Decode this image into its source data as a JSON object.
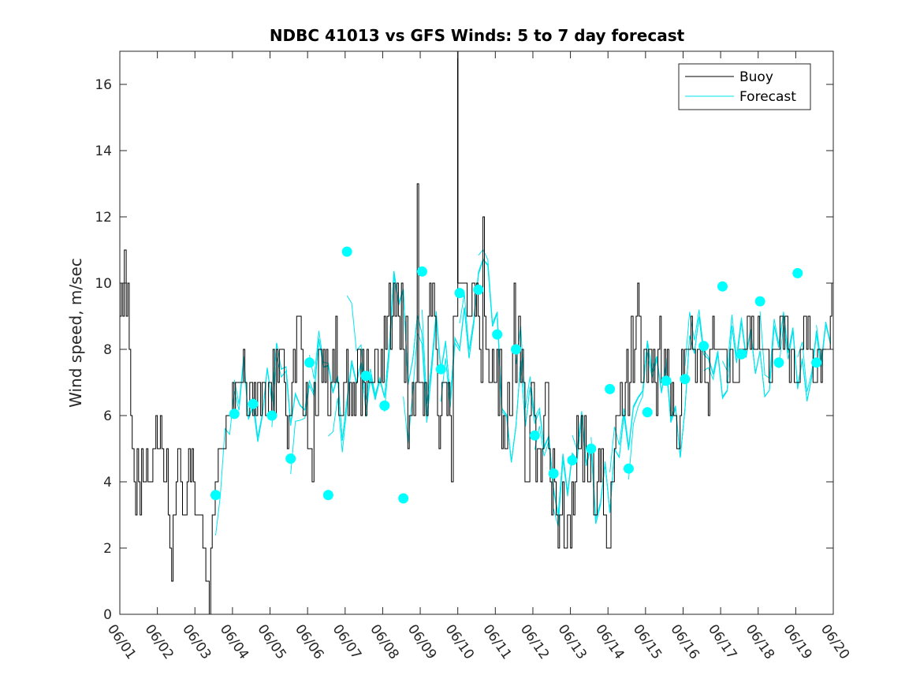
{
  "chart_data": {
    "type": "line",
    "title": "NDBC 41013 vs GFS Winds: 5 to 7 day forecast",
    "xlabel": "",
    "ylabel": "Wind speed, m/sec",
    "x_ticks": [
      "06/01",
      "06/02",
      "06/03",
      "06/04",
      "06/05",
      "06/06",
      "06/07",
      "06/08",
      "06/09",
      "06/10",
      "06/11",
      "06/12",
      "06/13",
      "06/14",
      "06/15",
      "06/16",
      "06/17",
      "06/18",
      "06/19",
      "06/20"
    ],
    "xlim": [
      0,
      19
    ],
    "ylim": [
      0,
      17
    ],
    "y_ticks": [
      0,
      2,
      4,
      6,
      8,
      10,
      12,
      14,
      16
    ],
    "grid": false,
    "legend": {
      "position": "top-right",
      "entries": [
        "Buoy",
        "Forecast"
      ]
    },
    "colors": {
      "buoy": "#000000",
      "forecast": "#00e5ee",
      "markers": "#00ffff"
    },
    "series": [
      {
        "name": "Buoy",
        "x_days_since_0601": [
          0,
          0.04,
          0.08,
          0.12,
          0.17,
          0.21,
          0.25,
          0.29,
          0.33,
          0.38,
          0.42,
          0.46,
          0.5,
          0.54,
          0.58,
          0.62,
          0.67,
          0.71,
          0.75,
          0.79,
          0.83,
          0.88,
          0.92,
          0.96,
          1,
          1.04,
          1.08,
          1.12,
          1.17,
          1.21,
          1.25,
          1.29,
          1.33,
          1.38,
          1.42,
          1.46,
          1.5,
          1.54,
          1.58,
          1.62,
          1.67,
          1.71,
          1.75,
          1.79,
          1.83,
          1.88,
          1.92,
          1.96,
          2,
          2.04,
          2.08,
          2.12,
          2.17,
          2.21,
          2.25,
          2.29,
          2.33,
          2.38,
          2.42,
          2.46,
          2.5,
          2.54,
          2.58,
          2.62,
          2.67,
          2.71,
          2.75,
          2.79,
          2.83,
          2.88,
          2.92,
          2.96,
          3,
          3.04,
          3.08,
          3.12,
          3.17,
          3.21,
          3.25,
          3.29,
          3.33,
          3.38,
          3.42,
          3.46,
          3.5,
          3.54,
          3.58,
          3.62,
          3.67,
          3.71,
          3.75,
          3.79,
          3.83,
          3.88,
          3.92,
          3.96,
          4,
          4.04,
          4.08,
          4.12,
          4.17,
          4.21,
          4.25,
          4.29,
          4.33,
          4.38,
          4.42,
          4.46,
          4.5,
          4.54,
          4.58,
          4.62,
          4.67,
          4.71,
          4.75,
          4.79,
          4.83,
          4.88,
          4.92,
          4.96,
          5,
          5.04,
          5.08,
          5.12,
          5.17,
          5.21,
          5.25,
          5.29,
          5.33,
          5.38,
          5.42,
          5.46,
          5.5,
          5.54,
          5.58,
          5.62,
          5.67,
          5.71,
          5.75,
          5.79,
          5.83,
          5.88,
          5.92,
          5.96,
          6,
          6.04,
          6.08,
          6.12,
          6.17,
          6.21,
          6.25,
          6.29,
          6.33,
          6.38,
          6.42,
          6.46,
          6.5,
          6.54,
          6.58,
          6.62,
          6.67,
          6.71,
          6.75,
          6.79,
          6.83,
          6.88,
          6.92,
          6.96,
          7,
          7.04,
          7.08,
          7.12,
          7.17,
          7.21,
          7.25,
          7.29,
          7.33,
          7.38,
          7.42,
          7.46,
          7.5,
          7.54,
          7.58,
          7.62,
          7.67,
          7.71,
          7.75,
          7.79,
          7.83,
          7.88,
          7.92,
          7.96,
          8,
          8.04,
          8.08,
          8.12,
          8.17,
          8.21,
          8.25,
          8.29,
          8.33,
          8.38,
          8.42,
          8.46,
          8.5,
          8.54,
          8.58,
          8.62,
          8.67,
          8.71,
          8.75,
          8.79,
          8.83,
          8.88,
          8.92,
          8.96,
          9,
          9.04,
          9.08,
          9.12,
          9.17,
          9.21,
          9.25,
          9.29,
          9.33,
          9.38,
          9.42,
          9.46,
          9.5,
          9.54,
          9.58,
          9.62,
          9.67,
          9.71,
          9.75,
          9.79,
          9.83,
          9.88,
          9.92,
          9.96,
          10,
          10.04,
          10.08,
          10.12,
          10.17,
          10.21,
          10.25,
          10.29,
          10.33,
          10.38,
          10.42,
          10.46,
          10.5,
          10.54,
          10.58,
          10.62,
          10.67,
          10.71,
          10.75,
          10.79,
          10.83,
          10.88,
          10.92,
          10.96,
          11,
          11.04,
          11.08,
          11.12,
          11.17,
          11.21,
          11.25,
          11.29,
          11.33,
          11.38,
          11.42,
          11.46,
          11.5,
          11.54,
          11.58,
          11.62,
          11.67,
          11.71,
          11.75,
          11.79,
          11.83,
          11.88,
          11.92,
          11.96,
          12,
          12.04,
          12.08,
          12.12,
          12.17,
          12.21,
          12.25,
          12.29,
          12.33,
          12.38,
          12.42,
          12.46,
          12.5,
          12.54,
          12.58,
          12.62,
          12.67,
          12.71,
          12.75,
          12.79,
          12.83,
          12.88,
          12.92,
          12.96,
          13,
          13.04,
          13.08,
          13.12,
          13.17,
          13.21,
          13.25,
          13.29,
          13.33,
          13.38,
          13.42,
          13.46,
          13.5,
          13.54,
          13.58,
          13.62,
          13.67,
          13.71,
          13.75,
          13.79,
          13.83,
          13.88,
          13.92,
          13.96,
          14,
          14.04,
          14.08,
          14.12,
          14.17,
          14.21,
          14.25,
          14.29,
          14.33,
          14.38,
          14.42,
          14.46,
          14.5,
          14.54,
          14.58,
          14.62,
          14.67,
          14.71,
          14.75,
          14.79,
          14.83,
          14.88,
          14.92,
          14.96,
          15,
          15.04,
          15.08,
          15.12,
          15.17,
          15.21,
          15.25,
          15.29,
          15.33,
          15.38,
          15.42,
          15.46,
          15.5,
          15.54,
          15.58,
          15.62,
          15.67,
          15.71,
          15.75,
          15.79,
          15.83,
          15.88,
          15.92,
          15.96,
          16,
          16.04,
          16.08,
          16.12,
          16.17,
          16.21,
          16.25,
          16.29,
          16.33,
          16.38,
          16.42,
          16.46,
          16.5,
          16.54,
          16.58,
          16.62,
          16.67,
          16.71,
          16.75,
          16.79,
          16.83,
          16.88,
          16.92,
          16.96,
          17,
          17.04,
          17.08,
          17.12,
          17.17,
          17.21,
          17.25,
          17.29,
          17.33,
          17.38,
          17.42,
          17.46,
          17.5,
          17.54,
          17.58,
          17.62,
          17.67,
          17.71,
          17.75,
          17.79,
          17.83,
          17.88,
          17.92,
          17.96,
          18,
          18.04,
          18.08,
          18.12,
          18.17,
          18.21,
          18.25,
          18.29,
          18.33,
          18.38,
          18.42,
          18.46,
          18.5,
          18.54,
          18.58,
          18.62,
          18.67,
          18.71,
          18.75,
          18.79,
          18.83,
          18.88,
          18.92,
          18.96,
          19
        ],
        "values": [
          9,
          10,
          9,
          11,
          9,
          10,
          8,
          6,
          5,
          4,
          3,
          5,
          4,
          3,
          5,
          4,
          4,
          5,
          4,
          4,
          4,
          5,
          5,
          6,
          5,
          5,
          6,
          5,
          4,
          4,
          5,
          3,
          2,
          1,
          3,
          3,
          4,
          5,
          5,
          4,
          3,
          3,
          3,
          4,
          5,
          4,
          5,
          4,
          3,
          3,
          3,
          3,
          3,
          2,
          2,
          1,
          1,
          0,
          2,
          3,
          3,
          4,
          4,
          5,
          5,
          5,
          5,
          5,
          6,
          6,
          6,
          6,
          7,
          6,
          7,
          7,
          7,
          7,
          7,
          8,
          7,
          6,
          6,
          7,
          7,
          6,
          7,
          6,
          7,
          7,
          6,
          7,
          7,
          6,
          6,
          7,
          7,
          6,
          8,
          6,
          8,
          7,
          8,
          8,
          8,
          7,
          6,
          5,
          6,
          6,
          7,
          8,
          7,
          9,
          9,
          9,
          8,
          6,
          6,
          7,
          5,
          5,
          5,
          4,
          7,
          6,
          6,
          8,
          8,
          7,
          8,
          7,
          8,
          6,
          6,
          7,
          8,
          7,
          9,
          7,
          6,
          6,
          6,
          7,
          7,
          8,
          6,
          7,
          6,
          7,
          6,
          7,
          8,
          8,
          6,
          8,
          7,
          6,
          8,
          7,
          7,
          7,
          7,
          8,
          8,
          7,
          7,
          8,
          7,
          9,
          8,
          9,
          10,
          8,
          9,
          10,
          9,
          10,
          9,
          8,
          10,
          8,
          7,
          9,
          5,
          6,
          6,
          7,
          6,
          7,
          13,
          7,
          7,
          7,
          6,
          7,
          6,
          9,
          10,
          9,
          10,
          9,
          8,
          6,
          5,
          6,
          7,
          7,
          7,
          6,
          7,
          6,
          4,
          9,
          9,
          9,
          10,
          10,
          10,
          10,
          10,
          10,
          9,
          9,
          9,
          10,
          10,
          9,
          10,
          9,
          8,
          7,
          12,
          9,
          8,
          8,
          7,
          7,
          8,
          7,
          7,
          8,
          6,
          8,
          5,
          6,
          5,
          5,
          7,
          6,
          6,
          8,
          10,
          7,
          8,
          9,
          7,
          8,
          7,
          4,
          4,
          4,
          6,
          7,
          7,
          6,
          4,
          5,
          5,
          4,
          5,
          6,
          7,
          7,
          5,
          4,
          3,
          5,
          4,
          3,
          2,
          3,
          3,
          4,
          2,
          2,
          3,
          3,
          2,
          4,
          3,
          4,
          6,
          5,
          5,
          6,
          4,
          6,
          5,
          4,
          4,
          5,
          5,
          3,
          3,
          4,
          5,
          4,
          5,
          3,
          3,
          2,
          2,
          2,
          4,
          4,
          5,
          6,
          6,
          6,
          7,
          6,
          6,
          7,
          8,
          6,
          7,
          9,
          7,
          8,
          9,
          10,
          9,
          7,
          7,
          8,
          8,
          7,
          8,
          8,
          7,
          8,
          7,
          6,
          8,
          9,
          7,
          7,
          8,
          7,
          8,
          7,
          6,
          7,
          6,
          6,
          5,
          5,
          6,
          8,
          7,
          8,
          8,
          8,
          8,
          9,
          8,
          8,
          7,
          8,
          8,
          7,
          8,
          8,
          7,
          7,
          6,
          8,
          8,
          9,
          8,
          8,
          8,
          8,
          8,
          8,
          8,
          8,
          7,
          7,
          8,
          8,
          7,
          7,
          7,
          7,
          8,
          8,
          8,
          8,
          8,
          9,
          9,
          8,
          9,
          8,
          8,
          8,
          9,
          8,
          8,
          8,
          8,
          8,
          8,
          7,
          7,
          8,
          8,
          8,
          8,
          8,
          9,
          9,
          8,
          9,
          9,
          8,
          7,
          8,
          8,
          7,
          7,
          7,
          7,
          8,
          8,
          9,
          9,
          8,
          9,
          8,
          8,
          7,
          7,
          7,
          8,
          8,
          7,
          8,
          8,
          8,
          8,
          8,
          9,
          10,
          9,
          10,
          10
        ]
      },
      {
        "name": "Forecast",
        "marker_x_days_since_0601": [
          2.55,
          3.05,
          3.55,
          4.05,
          4.55,
          5.05,
          5.55,
          6.05,
          6.55,
          7.05,
          7.55,
          8.05,
          8.55,
          9.05,
          9.55,
          10.05,
          10.55,
          11.05,
          11.55,
          12.05,
          12.55,
          13.05,
          13.55,
          14.05,
          14.55,
          15.05,
          15.55,
          16.05,
          16.55,
          17.05,
          17.55,
          18.05,
          18.55
        ],
        "marker_values": [
          3.6,
          6.05,
          6.35,
          6.0,
          4.7,
          7.6,
          3.6,
          10.95,
          7.2,
          6.3,
          3.5,
          10.35,
          7.4,
          9.7,
          9.8,
          8.45,
          8.0,
          5.4,
          4.25,
          4.65,
          5.0,
          6.8,
          4.4,
          6.1,
          7.05,
          7.1,
          8.1,
          9.9,
          7.85,
          9.45,
          7.6,
          10.3,
          7.6
        ]
      }
    ]
  }
}
